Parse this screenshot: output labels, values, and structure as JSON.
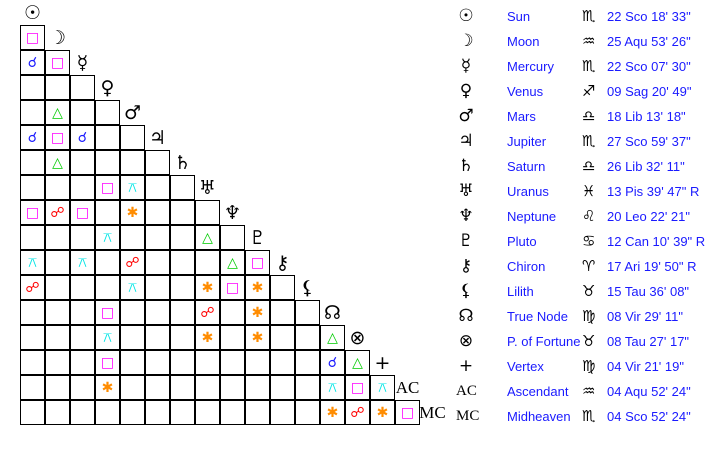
{
  "aspect_styles": {
    "conjunction": {
      "glyph": "☌",
      "color": "#1a1aff"
    },
    "square": {
      "glyph": "□",
      "color": "#ff00ff"
    },
    "trine": {
      "glyph": "△",
      "color": "#00cc00"
    },
    "opposition": {
      "glyph": "☍",
      "color": "#ff0000"
    },
    "sextile": {
      "glyph": "✱",
      "color": "#ff8c00"
    },
    "quincunx": {
      "glyph": "⚻",
      "color": "#00e5e5"
    }
  },
  "bodies": [
    {
      "glyph": "☉",
      "name": "Sun",
      "sign": "♏",
      "position": "22 Sco 18' 33\""
    },
    {
      "glyph": "☽",
      "name": "Moon",
      "sign": "♒",
      "position": "25 Aqu 53' 26\""
    },
    {
      "glyph": "☿",
      "name": "Mercury",
      "sign": "♏",
      "position": "22 Sco 07' 30\""
    },
    {
      "glyph": "♀",
      "name": "Venus",
      "sign": "♐",
      "position": "09 Sag 20' 49\""
    },
    {
      "glyph": "♂",
      "name": "Mars",
      "sign": "♎",
      "position": "18 Lib 13' 18\""
    },
    {
      "glyph": "♃",
      "name": "Jupiter",
      "sign": "♏",
      "position": "27 Sco 59' 37\""
    },
    {
      "glyph": "♄",
      "name": "Saturn",
      "sign": "♎",
      "position": "26 Lib 32' 11\""
    },
    {
      "glyph": "♅",
      "name": "Uranus",
      "sign": "♓",
      "position": "13 Pis 39' 47\" R"
    },
    {
      "glyph": "♆",
      "name": "Neptune",
      "sign": "♌",
      "position": "20 Leo 22' 21\""
    },
    {
      "glyph": "♇",
      "name": "Pluto",
      "sign": "♋",
      "position": "12 Can 10' 39\" R"
    },
    {
      "glyph": "⚷",
      "name": "Chiron",
      "sign": "♈",
      "position": "17 Ari 19' 50\" R"
    },
    {
      "glyph": "⚸",
      "name": "Lilith",
      "sign": "♉",
      "position": "15 Tau 36' 08\""
    },
    {
      "glyph": "☊",
      "name": "True Node",
      "sign": "♍",
      "position": "08 Vir 29' 11\""
    },
    {
      "glyph": "⊗",
      "name": "P. of Fortune",
      "sign": "♉",
      "position": "08 Tau 27' 17\""
    },
    {
      "glyph": "+",
      "name": "Vertex",
      "sign": "♍",
      "position": "04 Vir 21' 19\""
    },
    {
      "glyph": "AC",
      "name": "Ascendant",
      "sign": "♒",
      "position": "04 Aqu 52' 24\""
    },
    {
      "glyph": "MC",
      "name": "Midheaven",
      "sign": "♏",
      "position": "04 Sco 52' 24\""
    }
  ],
  "aspect_grid": [
    [
      "square"
    ],
    [
      "conjunction",
      "square"
    ],
    [
      "",
      "",
      ""
    ],
    [
      "",
      "trine",
      "",
      ""
    ],
    [
      "conjunction",
      "square",
      "conjunction",
      "",
      ""
    ],
    [
      "",
      "trine",
      "",
      "",
      "",
      ""
    ],
    [
      "",
      "",
      "",
      "square",
      "quincunx",
      "",
      ""
    ],
    [
      "square",
      "opposition",
      "square",
      "",
      "sextile",
      "",
      "",
      ""
    ],
    [
      "",
      "",
      "",
      "quincunx",
      "",
      "",
      "",
      "trine",
      ""
    ],
    [
      "quincunx",
      "",
      "quincunx",
      "",
      "opposition",
      "",
      "",
      "",
      "trine",
      "square"
    ],
    [
      "opposition",
      "",
      "",
      "",
      "quincunx",
      "",
      "",
      "sextile",
      "square",
      "sextile",
      ""
    ],
    [
      "",
      "",
      "",
      "square",
      "",
      "",
      "",
      "opposition",
      "",
      "sextile",
      "",
      ""
    ],
    [
      "",
      "",
      "",
      "quincunx",
      "",
      "",
      "",
      "sextile",
      "",
      "sextile",
      "",
      "",
      "trine"
    ],
    [
      "",
      "",
      "",
      "square",
      "",
      "",
      "",
      "",
      "",
      "",
      "",
      "",
      "conjunction",
      "trine"
    ],
    [
      "",
      "",
      "",
      "sextile",
      "",
      "",
      "",
      "",
      "",
      "",
      "",
      "",
      "quincunx",
      "square",
      "quincunx"
    ],
    [
      "",
      "",
      "",
      "",
      "",
      "",
      "",
      "",
      "",
      "",
      "",
      "",
      "sextile",
      "opposition",
      "sextile",
      "square"
    ]
  ]
}
